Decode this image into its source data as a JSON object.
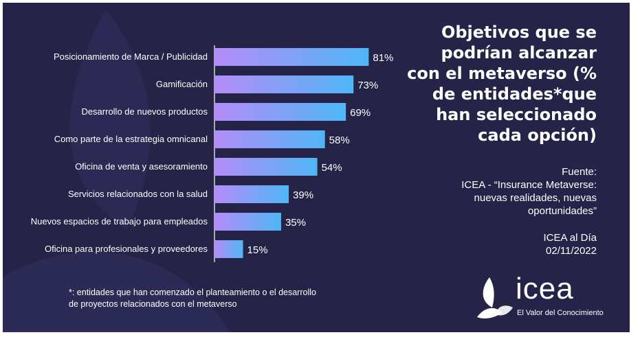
{
  "chart_data": {
    "type": "bar",
    "orientation": "horizontal",
    "title": "Objetivos que se podrían alcanzar con el metaverso (% de entidades*que han seleccionado cada opción)",
    "categories": [
      "Posicionamiento de Marca / Publicidad",
      "Gamificación",
      "Desarrollo de nuevos productos",
      "Como parte de la estrategia omnicanal",
      "Oficina de venta y asesoramiento",
      "Servicios relacionados con la salud",
      "Nuevos espacios de trabajo para empleados",
      "Oficina para profesionales y proveedores"
    ],
    "values": [
      81,
      73,
      69,
      58,
      54,
      39,
      35,
      15
    ],
    "value_labels": [
      "81%",
      "73%",
      "69%",
      "58%",
      "54%",
      "39%",
      "35%",
      "15%"
    ],
    "unit": "%",
    "xlim": [
      0,
      100
    ],
    "grid": false,
    "colors": {
      "bar_start": "#b48cf7",
      "bar_end": "#4fb6f6"
    }
  },
  "title_lines": [
    "Objetivos que se",
    "podrían alcanzar",
    "con el metaverso (%",
    "de entidades*que",
    "han seleccionado",
    "cada opción)"
  ],
  "source": {
    "label": "Fuente:",
    "lines": [
      "ICEA - “Insurance Metaverse:",
      "nuevas realidades, nuevas",
      "oportunidades”"
    ]
  },
  "publication": {
    "name": "ICEA al Día",
    "date": "02/11/2022"
  },
  "footnote": {
    "line1": "*: entidades que han comenzado el planteamiento o el desarrollo",
    "line2": "de proyectos relacionados con el metaverso"
  },
  "logo": {
    "text": "icea",
    "tagline": "El Valor del Conocimiento"
  },
  "colors": {
    "background": "#252347",
    "text": "#ffffff",
    "axis": "#ffffff"
  }
}
